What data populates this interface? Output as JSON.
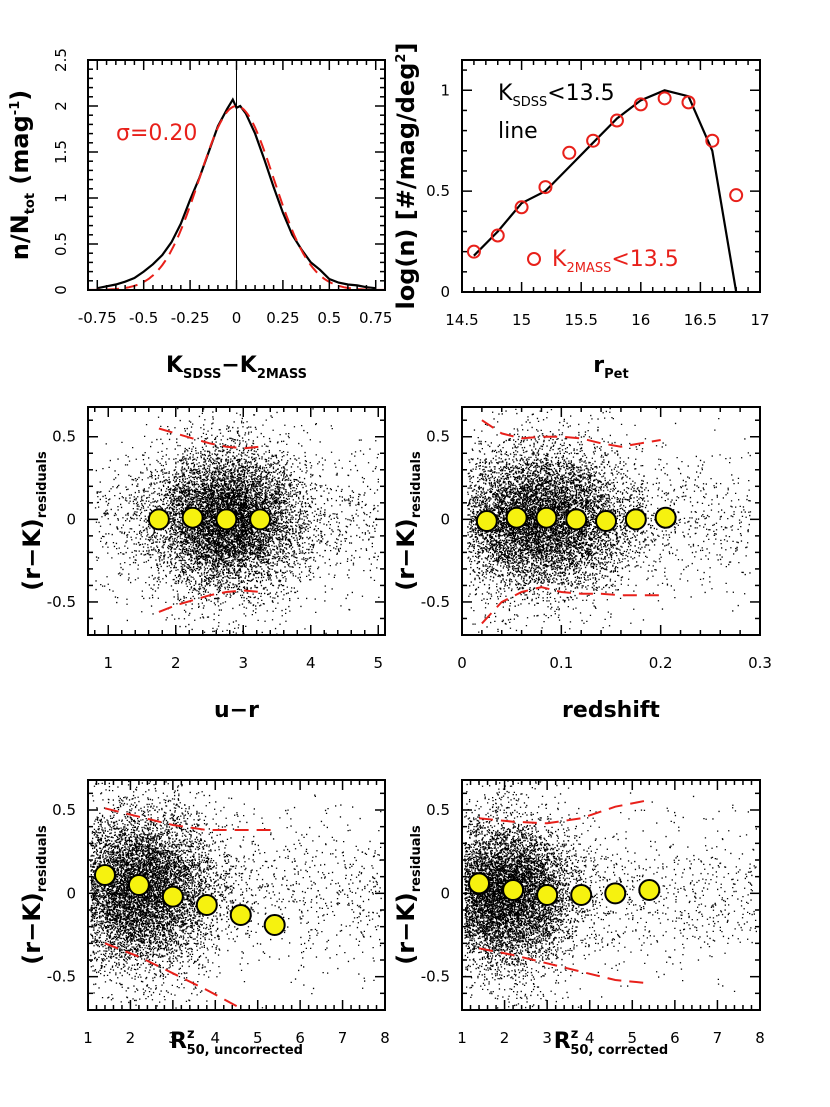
{
  "colors": {
    "red": "#e8201a",
    "yellow": "#f6f20f",
    "black": "#000000",
    "dot": "#000000"
  },
  "chart_data": [
    {
      "id": "p1",
      "type": "line",
      "ylabel": {
        "main": "n/N",
        "sub": "tot",
        "rest": " (mag",
        "sup": "-1",
        "end": ")"
      },
      "xlabel": {
        "main": "K",
        "sub": "SDSS",
        "mid": "−K",
        "sub2": "2MASS"
      },
      "annotation": "σ=0.20",
      "xlim": [
        -0.8,
        0.8
      ],
      "ylim": [
        0,
        2.5
      ],
      "xticks": [
        -0.75,
        -0.5,
        -0.25,
        0,
        0.25,
        0.5,
        0.75
      ],
      "xticklabels": [
        "-0.75",
        "-0.5",
        "-0.25",
        "0",
        "0.25",
        "0.5",
        "0.75"
      ],
      "yticks": [
        0,
        0.5,
        1,
        1.5,
        2,
        2.5
      ],
      "yticklabels": [
        "0",
        "0.5",
        "1",
        "1.5",
        "2",
        "2.5"
      ],
      "vline_x": 0,
      "series": [
        {
          "name": "histogram",
          "style": "black-solid",
          "x": [
            -0.75,
            -0.7,
            -0.65,
            -0.6,
            -0.55,
            -0.5,
            -0.45,
            -0.4,
            -0.35,
            -0.3,
            -0.25,
            -0.2,
            -0.15,
            -0.1,
            -0.05,
            -0.02,
            0,
            0.02,
            0.05,
            0.1,
            0.15,
            0.2,
            0.25,
            0.3,
            0.35,
            0.4,
            0.45,
            0.5,
            0.55,
            0.6,
            0.65,
            0.7,
            0.75
          ],
          "y": [
            0.02,
            0.04,
            0.06,
            0.09,
            0.13,
            0.2,
            0.28,
            0.38,
            0.52,
            0.72,
            0.98,
            1.22,
            1.5,
            1.78,
            1.97,
            2.07,
            1.98,
            2.0,
            1.92,
            1.7,
            1.42,
            1.12,
            0.84,
            0.6,
            0.44,
            0.3,
            0.22,
            0.12,
            0.08,
            0.06,
            0.05,
            0.03,
            0.02
          ]
        },
        {
          "name": "gaussian fit",
          "style": "red-dashed",
          "sigma": 0.2,
          "amplitude": 2.0,
          "center": 0
        }
      ]
    },
    {
      "id": "p2",
      "type": "line",
      "ylabel": {
        "main": "log(n) [#/mag/deg",
        "sup": "2",
        "end": "]"
      },
      "xlabel": {
        "main": "r",
        "sub": "Pet"
      },
      "xlim": [
        14.5,
        17
      ],
      "ylim": [
        0,
        1.15
      ],
      "xticks": [
        14.5,
        15,
        15.5,
        16,
        16.5,
        17
      ],
      "xticklabels": [
        "14.5",
        "15",
        "15.5",
        "16",
        "16.5",
        "17"
      ],
      "yticks": [
        0,
        0.5,
        1
      ],
      "yticklabels": [
        "0",
        "0.5",
        "1"
      ],
      "legend_line": {
        "main": "K",
        "sub": "SDSS",
        "rest": "<13.5",
        "line2": "line"
      },
      "legend_circle": {
        "main": "K",
        "sub": "2MASS",
        "rest": "<13.5"
      },
      "series": [
        {
          "name": "K_SDSS<13.5 line",
          "style": "black-solid",
          "x": [
            14.6,
            14.8,
            15.0,
            15.2,
            15.4,
            15.6,
            15.8,
            16.0,
            16.2,
            16.4,
            16.6,
            16.8
          ],
          "y": [
            0.18,
            0.3,
            0.44,
            0.5,
            0.62,
            0.74,
            0.86,
            0.95,
            1.0,
            0.97,
            0.7,
            0.0
          ]
        },
        {
          "name": "K_2MASS<13.5",
          "style": "red-open-circles",
          "x": [
            14.6,
            14.8,
            15.0,
            15.2,
            15.4,
            15.6,
            15.8,
            16.0,
            16.2,
            16.4,
            16.6,
            16.8
          ],
          "y": [
            0.2,
            0.28,
            0.42,
            0.52,
            0.69,
            0.75,
            0.85,
            0.93,
            0.96,
            0.94,
            0.75,
            0.48
          ]
        }
      ]
    },
    {
      "id": "p3",
      "type": "scatter",
      "ylabel": {
        "main": "(r−K)",
        "sub": "residuals"
      },
      "xlabel": {
        "main": "u−r"
      },
      "xlim": [
        0.7,
        5.1
      ],
      "ylim": [
        -0.7,
        0.68
      ],
      "xticks": [
        1,
        2,
        3,
        4,
        5
      ],
      "xticklabels": [
        "1",
        "2",
        "3",
        "4",
        "5"
      ],
      "yticks": [
        -0.5,
        0,
        0.5
      ],
      "yticklabels": [
        "-0.5",
        "0",
        "0.5"
      ],
      "scatter": {
        "n": 9000,
        "center": [
          2.75,
          0.0
        ],
        "spread": [
          0.55,
          0.2
        ],
        "xrange": [
          0.8,
          5.0
        ]
      },
      "medians": {
        "x": [
          1.75,
          2.25,
          2.75,
          3.25
        ],
        "y": [
          0.0,
          0.01,
          0.0,
          0.0
        ]
      },
      "upper": {
        "x": [
          1.75,
          2.0,
          2.25,
          2.5,
          2.75,
          3.0,
          3.25
        ],
        "y": [
          0.55,
          0.52,
          0.49,
          0.46,
          0.44,
          0.43,
          0.44
        ]
      },
      "lower": {
        "x": [
          1.75,
          2.0,
          2.25,
          2.5,
          2.75,
          3.0,
          3.25
        ],
        "y": [
          -0.56,
          -0.52,
          -0.49,
          -0.46,
          -0.44,
          -0.43,
          -0.44
        ]
      }
    },
    {
      "id": "p4",
      "type": "scatter",
      "ylabel": {
        "main": "(r−K)",
        "sub": "residuals"
      },
      "xlabel": {
        "main": "redshift"
      },
      "xlim": [
        0,
        0.3
      ],
      "ylim": [
        -0.7,
        0.68
      ],
      "xticks": [
        0,
        0.1,
        0.2,
        0.3
      ],
      "xticklabels": [
        "0",
        "0.1",
        "0.2",
        "0.3"
      ],
      "yticks": [
        -0.5,
        0,
        0.5
      ],
      "yticklabels": [
        "-0.5",
        "0",
        "0.5"
      ],
      "scatter": {
        "n": 9000,
        "center": [
          0.08,
          0.0
        ],
        "spread": [
          0.045,
          0.2
        ],
        "xrange": [
          0.005,
          0.29
        ]
      },
      "medians": {
        "x": [
          0.025,
          0.055,
          0.085,
          0.115,
          0.145,
          0.175,
          0.205
        ],
        "y": [
          -0.01,
          0.01,
          0.01,
          0.0,
          -0.01,
          0.0,
          0.01
        ]
      },
      "upper": {
        "x": [
          0.02,
          0.04,
          0.06,
          0.08,
          0.1,
          0.12,
          0.14,
          0.16,
          0.18,
          0.2
        ],
        "y": [
          0.6,
          0.52,
          0.49,
          0.5,
          0.5,
          0.49,
          0.46,
          0.44,
          0.46,
          0.48
        ]
      },
      "lower": {
        "x": [
          0.02,
          0.04,
          0.06,
          0.08,
          0.1,
          0.12,
          0.14,
          0.16,
          0.18,
          0.2
        ],
        "y": [
          -0.63,
          -0.5,
          -0.44,
          -0.41,
          -0.44,
          -0.45,
          -0.45,
          -0.46,
          -0.46,
          -0.46
        ]
      }
    },
    {
      "id": "p5",
      "type": "scatter",
      "ylabel": {
        "main": "(r−K)",
        "sub": "residuals"
      },
      "xlabel": {
        "main": "R",
        "sup": "z",
        "sub": "50, uncorrected"
      },
      "xlim": [
        1,
        8
      ],
      "ylim": [
        -0.7,
        0.68
      ],
      "xticks": [
        1,
        2,
        3,
        4,
        5,
        6,
        7,
        8
      ],
      "xticklabels": [
        "1",
        "2",
        "3",
        "4",
        "5",
        "6",
        "7",
        "8"
      ],
      "yticks": [
        -0.5,
        0,
        0.5
      ],
      "yticklabels": [
        "-0.5",
        "0",
        "0.5"
      ],
      "scatter": {
        "n": 9000,
        "center": [
          2.2,
          0.02
        ],
        "spread": [
          0.9,
          0.22
        ],
        "xrange": [
          1.05,
          7.9
        ]
      },
      "medians": {
        "x": [
          1.4,
          2.2,
          3.0,
          3.8,
          4.6,
          5.4
        ],
        "y": [
          0.11,
          0.05,
          -0.02,
          -0.07,
          -0.13,
          -0.19
        ]
      },
      "upper": {
        "x": [
          1.4,
          2.2,
          3.0,
          3.8,
          4.6,
          5.4
        ],
        "y": [
          0.51,
          0.46,
          0.41,
          0.38,
          0.38,
          0.38
        ]
      },
      "lower": {
        "x": [
          1.4,
          2.2,
          3.0,
          3.8,
          4.6
        ],
        "y": [
          -0.3,
          -0.38,
          -0.48,
          -0.58,
          -0.69
        ]
      }
    },
    {
      "id": "p6",
      "type": "scatter",
      "ylabel": {
        "main": "(r−K)",
        "sub": "residuals"
      },
      "xlabel": {
        "main": "R",
        "sup": "z",
        "sub": "50, corrected"
      },
      "xlim": [
        1,
        8
      ],
      "ylim": [
        -0.7,
        0.68
      ],
      "xticks": [
        1,
        2,
        3,
        4,
        5,
        6,
        7,
        8
      ],
      "xticklabels": [
        "1",
        "2",
        "3",
        "4",
        "5",
        "6",
        "7",
        "8"
      ],
      "yticks": [
        -0.5,
        0,
        0.5
      ],
      "yticklabels": [
        "-0.5",
        "0",
        "0.5"
      ],
      "scatter": {
        "n": 9000,
        "center": [
          2.0,
          0.0
        ],
        "spread": [
          0.8,
          0.2
        ],
        "xrange": [
          1.05,
          7.9
        ]
      },
      "medians": {
        "x": [
          1.4,
          2.2,
          3.0,
          3.8,
          4.6,
          5.4
        ],
        "y": [
          0.06,
          0.02,
          -0.01,
          -0.01,
          0.0,
          0.02
        ]
      },
      "upper": {
        "x": [
          1.4,
          2.2,
          3.0,
          3.8,
          4.6,
          5.4
        ],
        "y": [
          0.45,
          0.43,
          0.42,
          0.45,
          0.52,
          0.56
        ]
      },
      "lower": {
        "x": [
          1.4,
          2.2,
          3.0,
          3.8,
          4.6,
          5.4
        ],
        "y": [
          -0.33,
          -0.37,
          -0.42,
          -0.47,
          -0.52,
          -0.54
        ]
      }
    }
  ]
}
